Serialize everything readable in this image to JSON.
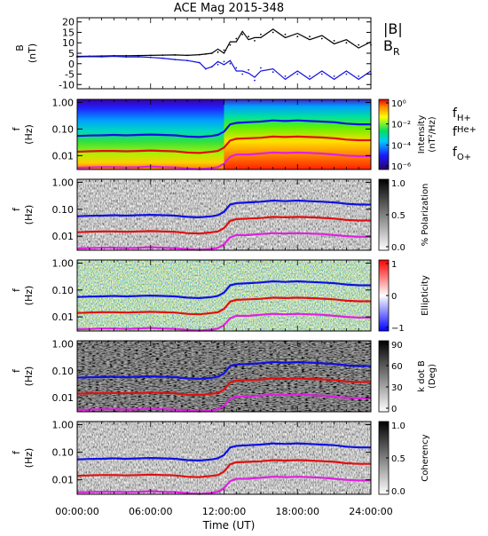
{
  "title": "ACE Mag 2015-348",
  "xlabel": "Time (UT)",
  "x_ticks": [
    "00:00:00",
    "06:00:00",
    "12:00:00",
    "18:00:00",
    "24:00:00"
  ],
  "legend_B": {
    "total": "|B|",
    "radial": "B",
    "radial_sub": "R"
  },
  "legend_f": [
    {
      "f": "f",
      "sub": "H+",
      "color": "#1010e0"
    },
    {
      "f": "f",
      "sub": "He+",
      "color": "#e01010"
    },
    {
      "f": "f",
      "sub": "O+",
      "color": "#e020e0"
    }
  ],
  "colors": {
    "b_total": "#000000",
    "b_radial": "#1010e0",
    "f_h": "#1010e0",
    "f_he": "#e01010",
    "f_o": "#e020e0"
  },
  "chart_data": [
    {
      "type": "line",
      "panel": "magnetic-field",
      "ylabel": "B",
      "yunit": "(nT)",
      "ylim": [
        -12,
        22
      ],
      "y_ticks": [
        "20",
        "15",
        "10",
        "5",
        "0",
        "-5",
        "-10"
      ],
      "x_hours": [
        0,
        1,
        2,
        3,
        4,
        5,
        6,
        7,
        8,
        9,
        10,
        10.5,
        11,
        11.5,
        12,
        12.5,
        13,
        13.5,
        14,
        14.5,
        15,
        16,
        17,
        18,
        19,
        20,
        21,
        22,
        23,
        24
      ],
      "series": [
        {
          "name": "|B|",
          "values": [
            3.5,
            3.6,
            3.7,
            3.8,
            3.8,
            3.9,
            4.0,
            4.1,
            4.2,
            4.0,
            4.3,
            4.6,
            5.0,
            5.5,
            6.5,
            9,
            12,
            14,
            13,
            11,
            14,
            15,
            14,
            13,
            13,
            12,
            11,
            10,
            9,
            9
          ]
        },
        {
          "name": "B",
          "values": [
            3.2,
            3.4,
            3.3,
            3.5,
            3.2,
            3.3,
            3.0,
            2.6,
            2.0,
            1.5,
            0.5,
            -2.5,
            -1.5,
            -0.5,
            1.0,
            0,
            -2,
            -5,
            -3,
            -8,
            -2,
            -4,
            -6,
            -5,
            -6,
            -5,
            -6,
            -5,
            -6,
            -5
          ]
        }
      ]
    },
    {
      "type": "heatmap",
      "panel": "intensity",
      "ylabel": "f",
      "yunit": "(Hz)",
      "ylim": [
        0.003,
        1.3
      ],
      "y_ticks": [
        "1.00",
        "0.10",
        "0.01"
      ],
      "colorbar_label": "Intensity",
      "colorbar_unit": "(nT²/Hz)",
      "colorbar_ticks": [
        "10⁰",
        "10⁻²",
        "10⁻⁴",
        "10⁻⁶"
      ]
    },
    {
      "type": "heatmap",
      "panel": "polarization",
      "ylabel": "f",
      "yunit": "(Hz)",
      "ylim": [
        0.003,
        1.3
      ],
      "y_ticks": [
        "1.00",
        "0.10",
        "0.01"
      ],
      "colorbar_label": "% Polarization",
      "colorbar_ticks": [
        "1.0",
        "0.5",
        "0.0"
      ]
    },
    {
      "type": "heatmap",
      "panel": "ellipticity",
      "ylabel": "f",
      "yunit": "(Hz)",
      "ylim": [
        0.003,
        1.3
      ],
      "y_ticks": [
        "1.00",
        "0.10",
        "0.01"
      ],
      "colorbar_label": "Ellipticity",
      "colorbar_ticks": [
        "1",
        "0",
        "−1"
      ]
    },
    {
      "type": "heatmap",
      "panel": "k-dot-b",
      "ylabel": "f",
      "yunit": "(Hz)",
      "ylim": [
        0.003,
        1.3
      ],
      "y_ticks": [
        "1.00",
        "0.10",
        "0.01"
      ],
      "colorbar_label": "k dot B",
      "colorbar_unit": "(Deg)",
      "colorbar_ticks": [
        "90",
        "60",
        "30",
        "0"
      ]
    },
    {
      "type": "heatmap",
      "panel": "coherency",
      "ylabel": "f",
      "yunit": "(Hz)",
      "ylim": [
        0.003,
        1.3
      ],
      "y_ticks": [
        "1.00",
        "0.10",
        "0.01"
      ],
      "colorbar_label": "Coherency",
      "colorbar_ticks": [
        "1.0",
        "0.5",
        "0.0"
      ]
    }
  ],
  "gyrofrequency_lines": {
    "x_hours": [
      0,
      1,
      2,
      3,
      4,
      5,
      6,
      7,
      8,
      9,
      10,
      11,
      11.5,
      12,
      12.5,
      13,
      14,
      15,
      16,
      17,
      18,
      19,
      20,
      21,
      22,
      23,
      24
    ],
    "f_H+": [
      0.055,
      0.057,
      0.058,
      0.06,
      0.058,
      0.06,
      0.062,
      0.06,
      0.058,
      0.052,
      0.05,
      0.055,
      0.06,
      0.08,
      0.15,
      0.17,
      0.18,
      0.19,
      0.21,
      0.2,
      0.21,
      0.2,
      0.19,
      0.18,
      0.16,
      0.15,
      0.15
    ],
    "f_He+": [
      0.014,
      0.0145,
      0.015,
      0.015,
      0.0145,
      0.015,
      0.0155,
      0.015,
      0.0145,
      0.013,
      0.0125,
      0.014,
      0.015,
      0.02,
      0.037,
      0.043,
      0.045,
      0.047,
      0.052,
      0.05,
      0.052,
      0.05,
      0.048,
      0.045,
      0.04,
      0.038,
      0.038
    ],
    "f_O+": [
      0.0035,
      0.0036,
      0.0037,
      0.0037,
      0.0036,
      0.0037,
      0.0039,
      0.0037,
      0.0036,
      0.0033,
      0.0031,
      0.0034,
      0.0037,
      0.005,
      0.009,
      0.011,
      0.011,
      0.012,
      0.013,
      0.0125,
      0.013,
      0.0125,
      0.012,
      0.011,
      0.01,
      0.0095,
      0.0095
    ]
  }
}
